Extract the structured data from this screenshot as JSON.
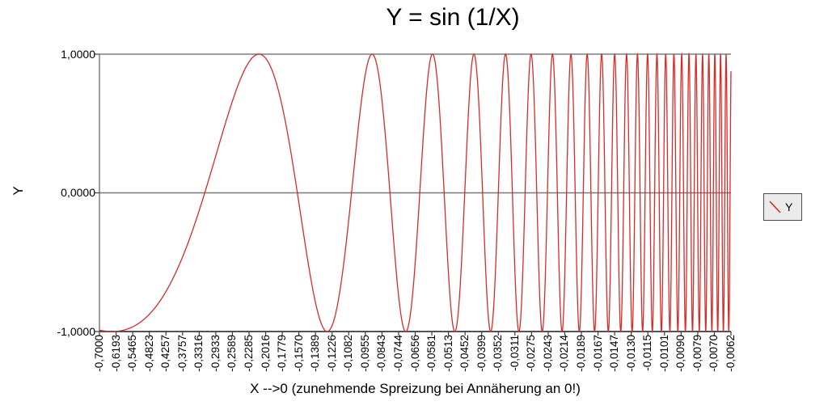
{
  "chart_data": {
    "type": "line",
    "title": "Y = sin (1/X)",
    "xlabel": "X -->0 (zunehmende Spreizung bei Annäherung an 0!)",
    "ylabel": "Y",
    "ylim": [
      -1,
      1
    ],
    "grid": "horizontal zero line only",
    "series": [
      {
        "name": "Y",
        "color": "#d62b27",
        "function": "y = sin(1/x)",
        "x_start": -0.7,
        "x_end": -0.0062,
        "x_spacing": "geometric sequence rendered at equal horizontal spacing (category axis)",
        "samples": 6000
      }
    ],
    "y_tick_labels": [
      "1,0000",
      "0,0000",
      "-1,0000"
    ],
    "x_tick_labels": [
      "-0,7000",
      "-0,6193",
      "-0,5465",
      "-0,4823",
      "-0,4257",
      "-0,3757",
      "-0,3316",
      "-0,2933",
      "-0,2589",
      "-0,2285",
      "-0,2016",
      "-0,1779",
      "-0,1570",
      "-0,1389",
      "-0,1226",
      "-0,1082",
      "-0,0955",
      "-0,0843",
      "-0,0744",
      "-0,0656",
      "-0,0581",
      "-0,0513",
      "-0,0452",
      "-0,0399",
      "-0,0352",
      "-0,0311",
      "-0,0275",
      "-0,0243",
      "-0,0214",
      "-0,0189",
      "-0,0167",
      "-0,0147",
      "-0,0130",
      "-0,0115",
      "-0,0101",
      "-0,0090",
      "-0,0079",
      "-0,0070",
      "-0,0062"
    ],
    "legend": {
      "label": "Y",
      "position": "right",
      "swatch": "red diagonal line"
    },
    "colors": {
      "curve": "#d62b27",
      "plot_border": "#7f7f7f",
      "bottom_axis": "#3c3c3c",
      "zero_line": "#787878",
      "background": "#ffffff",
      "legend_background": "#ebebeb"
    }
  }
}
